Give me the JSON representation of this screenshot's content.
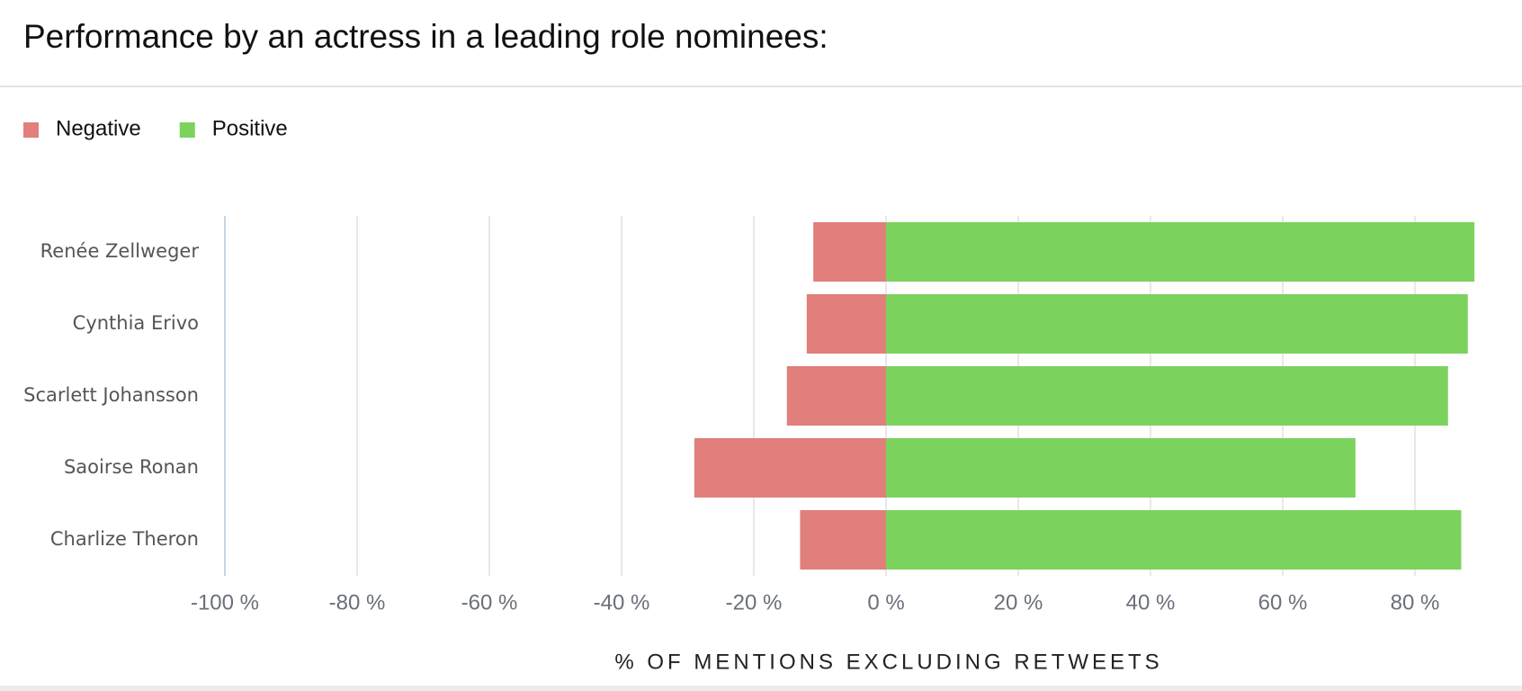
{
  "chart_data": {
    "type": "diverging-bar",
    "title": "Performance by an actress in a leading role nominees:",
    "categories": [
      "Renée Zellweger",
      "Cynthia Erivo",
      "Scarlett Johansson",
      "Saoirse Ronan",
      "Charlize Theron"
    ],
    "series": [
      {
        "name": "Negative",
        "color": "#e07f7c",
        "values": [
          -11,
          -12,
          -15,
          -29,
          -13
        ]
      },
      {
        "name": "Positive",
        "color": "#7bd35e",
        "values": [
          89,
          88,
          85,
          71,
          87
        ]
      }
    ],
    "xlim": [
      -100,
      100
    ],
    "xticks": [
      {
        "value": -100,
        "label": "-100 %"
      },
      {
        "value": -80,
        "label": "-80 %"
      },
      {
        "value": -60,
        "label": "-60 %"
      },
      {
        "value": -40,
        "label": "-40 %"
      },
      {
        "value": -20,
        "label": "-20 %"
      },
      {
        "value": 0,
        "label": "0 %"
      },
      {
        "value": 20,
        "label": "20 %"
      },
      {
        "value": 40,
        "label": "40 %"
      },
      {
        "value": 60,
        "label": "60 %"
      },
      {
        "value": 80,
        "label": "80 %"
      }
    ],
    "xlabel": "% OF MENTIONS EXCLUDING RETWEETS",
    "grid": true,
    "legend": "top-left"
  }
}
